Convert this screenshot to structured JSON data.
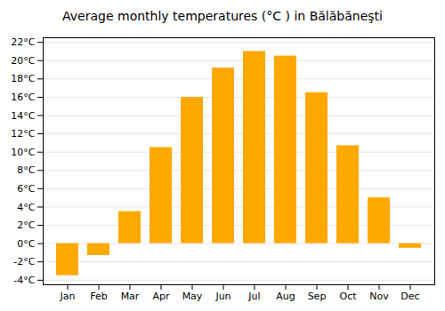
{
  "chart_data": {
    "type": "bar",
    "title": "Average monthly temperatures (°C ) in Bălăbăneşti",
    "categories": [
      "Jan",
      "Feb",
      "Mar",
      "Apr",
      "May",
      "Jun",
      "Jul",
      "Aug",
      "Sep",
      "Oct",
      "Nov",
      "Dec"
    ],
    "values": [
      -3.5,
      -1.3,
      3.5,
      10.5,
      16.0,
      19.2,
      21.0,
      20.5,
      16.5,
      10.7,
      5.0,
      -0.5
    ],
    "color": "#FFA800",
    "ylim": [
      -4.5,
      22.5
    ],
    "yticks": [
      {
        "value": -4,
        "label": "-4°C"
      },
      {
        "value": -2,
        "label": "-2°C"
      },
      {
        "value": 0,
        "label": "0°C"
      },
      {
        "value": 2,
        "label": "2°C"
      },
      {
        "value": 4,
        "label": "4°C"
      },
      {
        "value": 6,
        "label": "6°C"
      },
      {
        "value": 8,
        "label": "8°C"
      },
      {
        "value": 10,
        "label": "10°C"
      },
      {
        "value": 12,
        "label": "12°C"
      },
      {
        "value": 14,
        "label": "14°C"
      },
      {
        "value": 16,
        "label": "16°C"
      },
      {
        "value": 18,
        "label": "18°C"
      },
      {
        "value": 20,
        "label": "20°C"
      },
      {
        "value": 22,
        "label": "22°C"
      }
    ],
    "grid": true
  }
}
